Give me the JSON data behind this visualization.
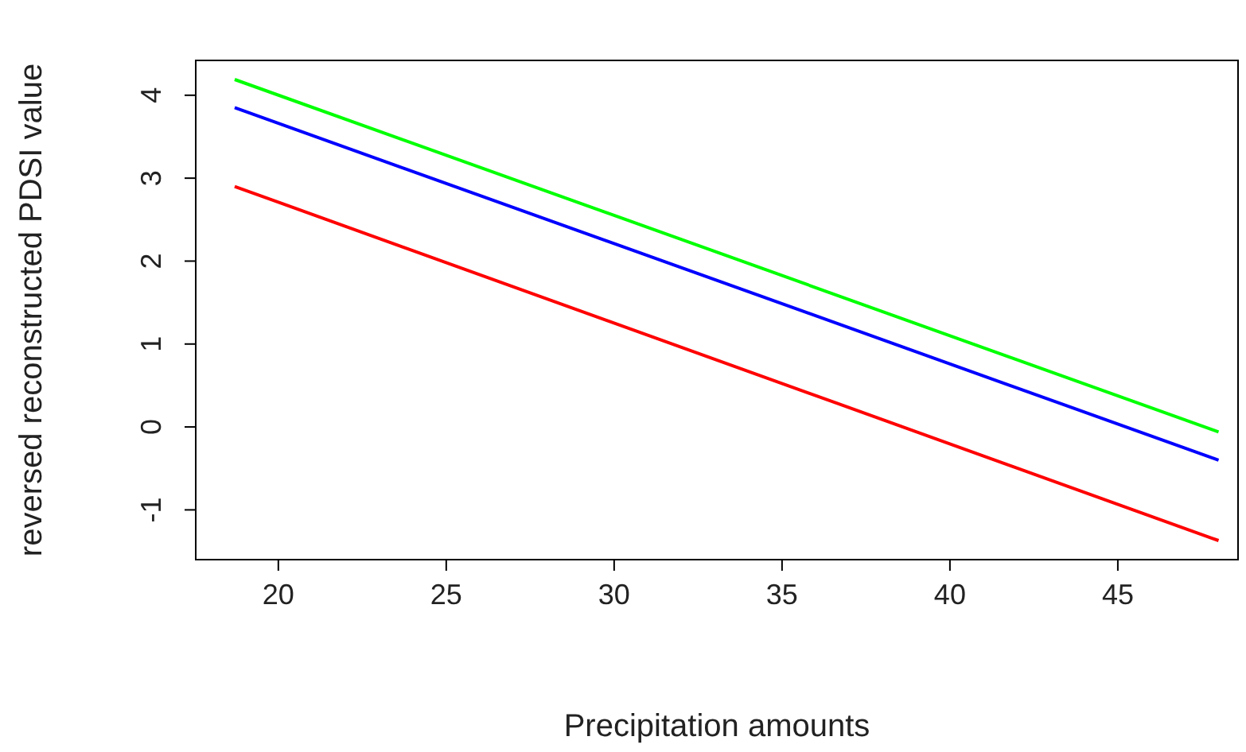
{
  "chart_data": {
    "type": "line",
    "xlabel": "Precipitation amounts",
    "ylabel": "reversed reconstructed PDSI value",
    "xlim": [
      17.54,
      48.58
    ],
    "ylim": [
      -1.6,
      4.42
    ],
    "xticks": [
      20,
      25,
      30,
      35,
      40,
      45
    ],
    "yticks": [
      -1,
      0,
      1,
      2,
      3,
      4
    ],
    "grid": false,
    "marker": "none",
    "line_style": "solid",
    "x": [
      18.7,
      48
    ],
    "series": [
      {
        "color": "#00ff00",
        "values": [
          4.19,
          -0.06
        ]
      },
      {
        "color": "#0000ff",
        "values": [
          3.85,
          -0.4
        ]
      },
      {
        "color": "#ff0000",
        "values": [
          2.9,
          -1.37
        ]
      }
    ]
  }
}
